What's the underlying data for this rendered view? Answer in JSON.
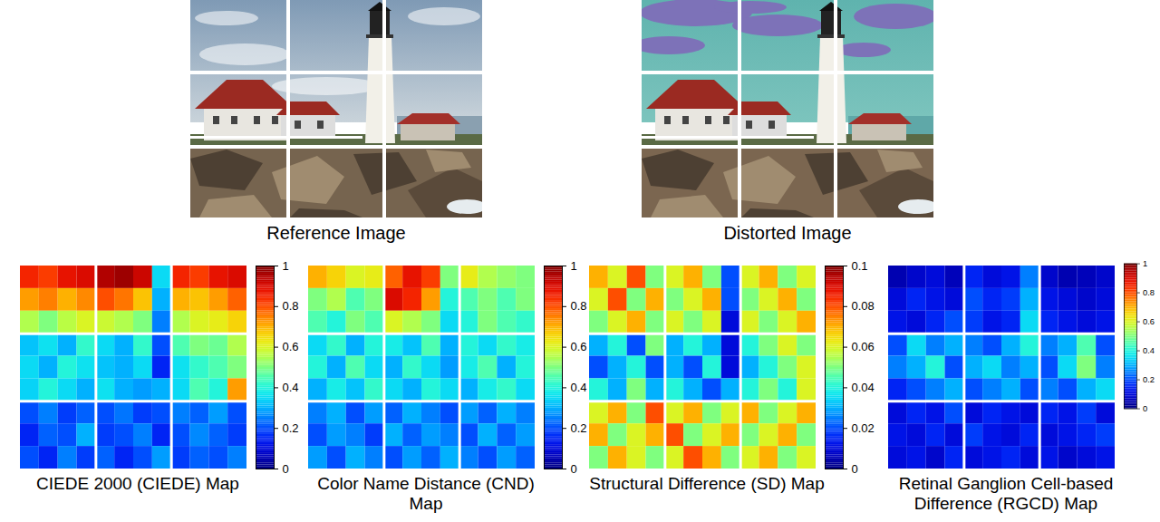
{
  "images": [
    {
      "caption": "Reference Image"
    },
    {
      "caption": "Distorted Image"
    }
  ],
  "chart_data": [
    {
      "type": "heatmap",
      "title": "CIEDE 2000 (CIEDE) Map",
      "tick_labels": false,
      "colorbar_lim": [
        0,
        1
      ],
      "colorbar_ticks": [
        0,
        0.2,
        0.4,
        0.6,
        0.8,
        1
      ],
      "cells": [
        [
          0.85,
          0.82,
          0.88,
          0.9,
          0.95,
          0.97,
          0.92,
          0.35,
          0.85,
          0.82,
          0.88,
          0.9
        ],
        [
          0.72,
          0.75,
          0.7,
          0.74,
          0.8,
          0.76,
          0.68,
          0.3,
          0.7,
          0.68,
          0.72,
          0.78
        ],
        [
          0.55,
          0.5,
          0.56,
          0.6,
          0.58,
          0.55,
          0.5,
          0.25,
          0.55,
          0.6,
          0.62,
          0.66
        ],
        [
          0.32,
          0.36,
          0.3,
          0.42,
          0.35,
          0.3,
          0.42,
          0.2,
          0.45,
          0.5,
          0.48,
          0.55
        ],
        [
          0.35,
          0.3,
          0.4,
          0.36,
          0.32,
          0.3,
          0.35,
          0.15,
          0.36,
          0.42,
          0.45,
          0.5
        ],
        [
          0.34,
          0.4,
          0.35,
          0.3,
          0.36,
          0.3,
          0.28,
          0.3,
          0.35,
          0.45,
          0.4,
          0.72
        ],
        [
          0.2,
          0.25,
          0.18,
          0.22,
          0.2,
          0.24,
          0.18,
          0.2,
          0.25,
          0.22,
          0.28,
          0.2
        ],
        [
          0.15,
          0.22,
          0.2,
          0.3,
          0.18,
          0.2,
          0.25,
          0.15,
          0.2,
          0.26,
          0.22,
          0.18
        ],
        [
          0.2,
          0.15,
          0.25,
          0.18,
          0.22,
          0.15,
          0.2,
          0.28,
          0.18,
          0.22,
          0.2,
          0.25
        ]
      ]
    },
    {
      "type": "heatmap",
      "title": "Color Name Distance (CND) Map",
      "tick_labels": false,
      "colorbar_lim": [
        0,
        1
      ],
      "colorbar_ticks": [
        0,
        0.2,
        0.4,
        0.6,
        0.8,
        1
      ],
      "cells": [
        [
          0.7,
          0.66,
          0.6,
          0.62,
          0.78,
          0.88,
          0.82,
          0.5,
          0.62,
          0.55,
          0.52,
          0.5
        ],
        [
          0.5,
          0.55,
          0.45,
          0.5,
          0.9,
          0.85,
          0.72,
          0.4,
          0.45,
          0.5,
          0.45,
          0.5
        ],
        [
          0.45,
          0.4,
          0.5,
          0.45,
          0.6,
          0.55,
          0.5,
          0.35,
          0.4,
          0.5,
          0.45,
          0.42
        ],
        [
          0.35,
          0.42,
          0.3,
          0.4,
          0.38,
          0.32,
          0.45,
          0.3,
          0.4,
          0.35,
          0.42,
          0.38
        ],
        [
          0.4,
          0.3,
          0.45,
          0.35,
          0.3,
          0.42,
          0.35,
          0.28,
          0.38,
          0.45,
          0.3,
          0.4
        ],
        [
          0.3,
          0.38,
          0.32,
          0.42,
          0.35,
          0.3,
          0.4,
          0.35,
          0.3,
          0.38,
          0.42,
          0.35
        ],
        [
          0.25,
          0.3,
          0.2,
          0.28,
          0.22,
          0.3,
          0.25,
          0.2,
          0.28,
          0.22,
          0.3,
          0.25
        ],
        [
          0.2,
          0.28,
          0.25,
          0.18,
          0.3,
          0.22,
          0.28,
          0.25,
          0.2,
          0.3,
          0.22,
          0.28
        ],
        [
          0.28,
          0.2,
          0.3,
          0.25,
          0.2,
          0.28,
          0.22,
          0.3,
          0.25,
          0.2,
          0.28,
          0.22
        ]
      ]
    },
    {
      "type": "heatmap",
      "title": "Structural Difference (SD) Map",
      "tick_labels": false,
      "colorbar_lim": [
        0,
        0.1
      ],
      "colorbar_ticks": [
        0,
        0.02,
        0.04,
        0.06,
        0.08,
        0.1
      ],
      "cells": [
        [
          0.07,
          0.06,
          0.08,
          0.05,
          0.06,
          0.07,
          0.05,
          0.02,
          0.06,
          0.07,
          0.05,
          0.06
        ],
        [
          0.06,
          0.08,
          0.05,
          0.07,
          0.05,
          0.06,
          0.07,
          0.02,
          0.05,
          0.06,
          0.07,
          0.05
        ],
        [
          0.05,
          0.06,
          0.07,
          0.05,
          0.06,
          0.05,
          0.06,
          0.01,
          0.06,
          0.05,
          0.06,
          0.07
        ],
        [
          0.03,
          0.04,
          0.02,
          0.05,
          0.03,
          0.04,
          0.03,
          0.01,
          0.04,
          0.05,
          0.06,
          0.05
        ],
        [
          0.02,
          0.03,
          0.04,
          0.02,
          0.03,
          0.02,
          0.04,
          0.01,
          0.03,
          0.04,
          0.05,
          0.06
        ],
        [
          0.04,
          0.03,
          0.05,
          0.03,
          0.04,
          0.03,
          0.02,
          0.03,
          0.04,
          0.05,
          0.04,
          0.06
        ],
        [
          0.06,
          0.07,
          0.05,
          0.08,
          0.06,
          0.07,
          0.05,
          0.06,
          0.07,
          0.05,
          0.06,
          0.07
        ],
        [
          0.07,
          0.05,
          0.06,
          0.07,
          0.08,
          0.05,
          0.06,
          0.07,
          0.05,
          0.06,
          0.07,
          0.05
        ],
        [
          0.05,
          0.07,
          0.06,
          0.05,
          0.06,
          0.08,
          0.07,
          0.05,
          0.06,
          0.07,
          0.05,
          0.06
        ]
      ]
    },
    {
      "type": "heatmap",
      "title": "Retinal Ganglion Cell-based Difference (RGCD) Map",
      "tick_labels": false,
      "colorbar_lim": [
        0,
        1
      ],
      "colorbar_ticks": [
        0,
        0.2,
        0.4,
        0.6,
        0.8,
        1
      ],
      "cells": [
        [
          0.05,
          0.08,
          0.1,
          0.06,
          0.15,
          0.1,
          0.12,
          0.25,
          0.08,
          0.05,
          0.06,
          0.08
        ],
        [
          0.1,
          0.15,
          0.12,
          0.1,
          0.2,
          0.15,
          0.18,
          0.3,
          0.12,
          0.1,
          0.08,
          0.1
        ],
        [
          0.12,
          0.1,
          0.15,
          0.2,
          0.18,
          0.12,
          0.15,
          0.35,
          0.15,
          0.12,
          0.1,
          0.12
        ],
        [
          0.2,
          0.35,
          0.25,
          0.3,
          0.25,
          0.2,
          0.3,
          0.4,
          0.25,
          0.3,
          0.45,
          0.2
        ],
        [
          0.25,
          0.3,
          0.4,
          0.2,
          0.3,
          0.35,
          0.25,
          0.3,
          0.2,
          0.35,
          0.5,
          0.25
        ],
        [
          0.15,
          0.2,
          0.25,
          0.3,
          0.2,
          0.25,
          0.3,
          0.2,
          0.25,
          0.2,
          0.3,
          0.35
        ],
        [
          0.1,
          0.15,
          0.12,
          0.2,
          0.1,
          0.15,
          0.12,
          0.1,
          0.15,
          0.12,
          0.18,
          0.1
        ],
        [
          0.12,
          0.1,
          0.15,
          0.1,
          0.18,
          0.12,
          0.1,
          0.15,
          0.1,
          0.12,
          0.15,
          0.18
        ],
        [
          0.1,
          0.12,
          0.08,
          0.15,
          0.1,
          0.12,
          0.15,
          0.1,
          0.12,
          0.08,
          0.1,
          0.12
        ]
      ]
    }
  ]
}
